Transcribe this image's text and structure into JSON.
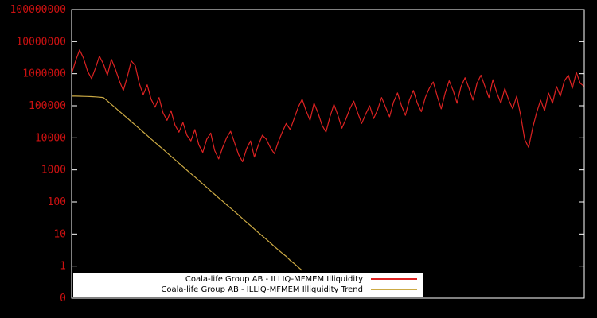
{
  "chart_data": {
    "type": "line",
    "title": "",
    "xlabel": "",
    "ylabel": "",
    "background": "#000000",
    "border_color": "#ffffff",
    "legend": {
      "position": "bottom-left-inside",
      "background": "#ffffff",
      "text_color": "#000000"
    },
    "axis": {
      "y_scale": "log10",
      "y_label_color": "#cc1111",
      "y_tick_labels": [
        "0",
        "1",
        "10",
        "100",
        "1000",
        "10000",
        "100000",
        "1000000",
        "10000000",
        "100000000"
      ],
      "x_tick_labels": []
    },
    "series": [
      {
        "name": "Coala-life Group AB - ILLIQ-MFMEM Illiquidity",
        "color": "#dd2222",
        "values": [
          1000000,
          2500000,
          5500000,
          3000000,
          1200000,
          700000,
          1500000,
          3500000,
          2000000,
          900000,
          2800000,
          1400000,
          600000,
          300000,
          800000,
          2500000,
          1800000,
          500000,
          220000,
          450000,
          160000,
          90000,
          180000,
          60000,
          35000,
          70000,
          25000,
          15000,
          30000,
          12000,
          8000,
          18000,
          6000,
          3500,
          9000,
          14000,
          4000,
          2200,
          5000,
          10000,
          16000,
          7000,
          3000,
          1800,
          4500,
          8000,
          2500,
          6000,
          12000,
          9000,
          5000,
          3200,
          7500,
          15000,
          28000,
          18000,
          40000,
          90000,
          160000,
          70000,
          35000,
          120000,
          60000,
          25000,
          15000,
          45000,
          110000,
          50000,
          20000,
          38000,
          80000,
          140000,
          60000,
          28000,
          55000,
          100000,
          40000,
          75000,
          180000,
          90000,
          45000,
          130000,
          250000,
          100000,
          50000,
          150000,
          300000,
          120000,
          65000,
          180000,
          350000,
          550000,
          200000,
          80000,
          250000,
          600000,
          300000,
          120000,
          400000,
          750000,
          350000,
          150000,
          500000,
          900000,
          400000,
          180000,
          650000,
          250000,
          120000,
          350000,
          150000,
          80000,
          200000,
          50000,
          9000,
          5000,
          20000,
          60000,
          150000,
          70000,
          250000,
          120000,
          400000,
          200000,
          600000,
          900000,
          350000,
          1100000,
          500000,
          400000
        ]
      },
      {
        "name": "Coala-life Group AB - ILLIQ-MFMEM Illiquidity Trend",
        "color": "#ccaa44",
        "values": [
          200000,
          200000,
          198000,
          196000,
          195000,
          193000,
          190000,
          185000,
          180000,
          142000,
          110000,
          86000,
          67000,
          52500,
          41000,
          32000,
          25000,
          19500,
          15200,
          11800,
          9200,
          7200,
          5600,
          4400,
          3400,
          2650,
          2080,
          1620,
          1260,
          980,
          765,
          600,
          465,
          365,
          285,
          220,
          172,
          134,
          105,
          82,
          64,
          50,
          39,
          30,
          23.5,
          18.3,
          14.3,
          11.1,
          8.7,
          6.8,
          5.3,
          4.1,
          3.2,
          2.5,
          2.0,
          1.5,
          1.2,
          0.93,
          0.73,
          null,
          null,
          null,
          null,
          null,
          null,
          null,
          null,
          null,
          null,
          null,
          null,
          null,
          null,
          null,
          null,
          null,
          null,
          null,
          null,
          null,
          null,
          null,
          null,
          null,
          null,
          null,
          null,
          null,
          null,
          null,
          null,
          null,
          null,
          null,
          null,
          null,
          null,
          null,
          null,
          null,
          null,
          null,
          null,
          null,
          null,
          null,
          null,
          null,
          null,
          null,
          null,
          null,
          null,
          null,
          null,
          null,
          null,
          null,
          null,
          null,
          null,
          null,
          null,
          null,
          null,
          null,
          null,
          null,
          null,
          null
        ]
      }
    ]
  }
}
